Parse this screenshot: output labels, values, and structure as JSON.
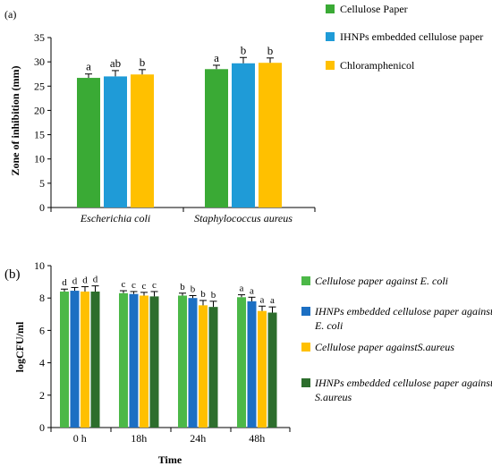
{
  "chart_data": [
    {
      "type": "bar",
      "panel_label": "(a)",
      "categories": [
        "Escherichia coli",
        "Staphylococcus aureus"
      ],
      "ylabel": "Zone of inhibition (mm)",
      "xlabel": "",
      "ylim": [
        0,
        35
      ],
      "yticks": [
        0,
        5,
        10,
        15,
        20,
        25,
        30,
        35
      ],
      "grid": false,
      "legend_position": "right",
      "series": [
        {
          "name": "Cellulose Paper",
          "color": "#3aaa35",
          "values": [
            26.7,
            28.5
          ],
          "errors": [
            0.8,
            0.8
          ],
          "letters": [
            "a",
            "a"
          ]
        },
        {
          "name": "IHNPs embedded cellulose paper",
          "color": "#1f9bd7",
          "values": [
            27.0,
            29.7
          ],
          "errors": [
            1.2,
            1.2
          ],
          "letters": [
            "ab",
            "b"
          ]
        },
        {
          "name": "Chloramphenicol",
          "color": "#ffc000",
          "values": [
            27.4,
            29.8
          ],
          "errors": [
            1.0,
            1.0
          ],
          "letters": [
            "b",
            "b"
          ]
        }
      ]
    },
    {
      "type": "bar",
      "panel_label": "(b)",
      "categories": [
        "0 h",
        "18h",
        "24h",
        "48h"
      ],
      "ylabel": "logCFU/ml",
      "xlabel": "Time",
      "ylim": [
        0,
        10
      ],
      "yticks": [
        0,
        2,
        4,
        6,
        8,
        10
      ],
      "grid": false,
      "legend_position": "right",
      "series": [
        {
          "name_prefix": "Cellulose paper against ",
          "name_suffix": "E. coli",
          "color": "#4cb848",
          "values": [
            8.4,
            8.3,
            8.15,
            8.05
          ],
          "errors": [
            0.15,
            0.15,
            0.15,
            0.15
          ],
          "letters": [
            "d",
            "c",
            "b",
            "a"
          ]
        },
        {
          "name_prefix": "IHNPs embedded cellulose paper against ",
          "name_suffix": "E. coli",
          "color": "#1c6fc3",
          "values": [
            8.45,
            8.25,
            8.0,
            7.8
          ],
          "errors": [
            0.2,
            0.15,
            0.15,
            0.25
          ],
          "letters": [
            "d",
            "c",
            "b",
            "a"
          ]
        },
        {
          "name_prefix": "Cellulose paper against",
          "name_suffix": "S.aureus",
          "color": "#ffc000",
          "values": [
            8.4,
            8.15,
            7.55,
            7.2
          ],
          "errors": [
            0.3,
            0.2,
            0.3,
            0.3
          ],
          "letters": [
            "d",
            "c",
            "b",
            "a"
          ]
        },
        {
          "name_prefix": "IHNPs embedded cellulose paper against ",
          "name_suffix": "S.aureus",
          "color": "#2d6e2d",
          "values": [
            8.4,
            8.1,
            7.45,
            7.1
          ],
          "errors": [
            0.35,
            0.3,
            0.35,
            0.35
          ],
          "letters": [
            "d",
            "c",
            "b",
            "a"
          ]
        }
      ]
    }
  ]
}
